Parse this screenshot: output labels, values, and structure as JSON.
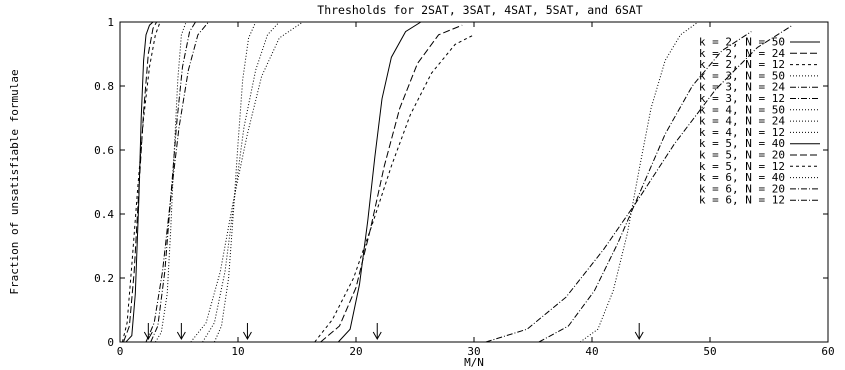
{
  "chart_data": {
    "type": "line",
    "title": "Thresholds for 2SAT, 3SAT, 4SAT, 5SAT, and 6SAT",
    "xlabel": "M/N",
    "ylabel": "Fraction of unsatisfiable formulae",
    "xlim": [
      0,
      60
    ],
    "ylim": [
      0,
      1
    ],
    "xticks": [
      0,
      10,
      20,
      30,
      40,
      50,
      60
    ],
    "yticks": [
      0,
      0.2,
      0.4,
      0.6,
      0.8,
      1
    ],
    "xtick_labels": [
      "0",
      "10",
      "20",
      "30",
      "40",
      "50",
      "60"
    ],
    "ytick_labels": [
      "0",
      "0.2",
      "0.4",
      "0.6",
      "0.8",
      "1"
    ],
    "grid": false,
    "legend_position": "top-right",
    "arrow_markers_x": [
      2.4,
      5.2,
      10.8,
      21.8,
      44.0
    ],
    "series": [
      {
        "name": "k = 2, N = 50",
        "dash": "solid",
        "x": [
          0.5,
          1.0,
          1.3,
          1.6,
          1.8,
          2.0,
          2.2,
          2.5,
          2.8
        ],
        "y": [
          0.0,
          0.02,
          0.15,
          0.45,
          0.7,
          0.88,
          0.96,
          0.99,
          1.0
        ]
      },
      {
        "name": "k = 2, N = 24",
        "dash": "longdash",
        "x": [
          0.3,
          0.8,
          1.2,
          1.6,
          2.0,
          2.4,
          2.8,
          3.1
        ],
        "y": [
          0.0,
          0.05,
          0.22,
          0.48,
          0.72,
          0.9,
          0.98,
          1.0
        ]
      },
      {
        "name": "k = 2, N = 12",
        "dash": "dash",
        "x": [
          0.2,
          0.6,
          1.0,
          1.5,
          2.0,
          2.5,
          3.0,
          3.4
        ],
        "y": [
          0.0,
          0.06,
          0.24,
          0.48,
          0.7,
          0.86,
          0.96,
          1.0
        ]
      },
      {
        "name": "k = 3, N = 50",
        "dash": "dot",
        "x": [
          3.0,
          3.5,
          4.0,
          4.3,
          4.6,
          4.9,
          5.2,
          5.6
        ],
        "y": [
          0.0,
          0.03,
          0.15,
          0.35,
          0.6,
          0.82,
          0.96,
          1.0
        ]
      },
      {
        "name": "k = 3, N = 24",
        "dash": "dashdot",
        "x": [
          2.6,
          3.2,
          3.8,
          4.3,
          4.8,
          5.3,
          5.9,
          6.4
        ],
        "y": [
          0.0,
          0.05,
          0.22,
          0.45,
          0.68,
          0.86,
          0.97,
          1.0
        ]
      },
      {
        "name": "k = 3, N = 12",
        "dash": "dashdot",
        "x": [
          2.2,
          2.9,
          3.6,
          4.3,
          5.0,
          5.8,
          6.6,
          7.5
        ],
        "y": [
          0.0,
          0.06,
          0.22,
          0.45,
          0.67,
          0.85,
          0.96,
          1.0
        ]
      },
      {
        "name": "k = 4, N = 50",
        "dash": "dot",
        "x": [
          8.0,
          8.6,
          9.2,
          9.6,
          10.0,
          10.4,
          10.9,
          11.5
        ],
        "y": [
          0.0,
          0.05,
          0.2,
          0.4,
          0.62,
          0.82,
          0.95,
          1.0
        ]
      },
      {
        "name": "k = 4, N = 24",
        "dash": "dot",
        "x": [
          7.0,
          8.0,
          8.9,
          9.7,
          10.5,
          11.5,
          12.5,
          13.5
        ],
        "y": [
          0.0,
          0.06,
          0.22,
          0.45,
          0.67,
          0.85,
          0.96,
          1.0
        ]
      },
      {
        "name": "k = 4, N = 12",
        "dash": "dot",
        "x": [
          6.0,
          7.3,
          8.5,
          9.6,
          10.8,
          12.0,
          13.5,
          15.5
        ],
        "y": [
          0.0,
          0.06,
          0.22,
          0.44,
          0.65,
          0.83,
          0.95,
          1.0
        ]
      },
      {
        "name": "k = 5, N = 40",
        "dash": "solid",
        "x": [
          18.5,
          19.5,
          20.3,
          21.0,
          21.6,
          22.2,
          23.0,
          24.2,
          25.5
        ],
        "y": [
          0.0,
          0.04,
          0.18,
          0.38,
          0.58,
          0.76,
          0.89,
          0.97,
          1.0
        ]
      },
      {
        "name": "k = 5, N = 20",
        "dash": "longdash",
        "x": [
          17.0,
          18.6,
          20.0,
          21.2,
          22.4,
          23.7,
          25.2,
          27.0,
          29.0
        ],
        "y": [
          0.0,
          0.05,
          0.17,
          0.35,
          0.55,
          0.73,
          0.87,
          0.96,
          0.99
        ]
      },
      {
        "name": "k = 5, N = 12",
        "dash": "dash",
        "x": [
          16.5,
          18.0,
          19.8,
          21.4,
          23.0,
          24.6,
          26.4,
          28.4,
          30.0
        ],
        "y": [
          0.0,
          0.07,
          0.2,
          0.37,
          0.55,
          0.71,
          0.84,
          0.93,
          0.96
        ]
      },
      {
        "name": "k = 6, N = 40",
        "dash": "dot",
        "x": [
          39.0,
          40.5,
          41.8,
          43.0,
          44.0,
          45.0,
          46.2,
          47.5,
          49.0
        ],
        "y": [
          0.0,
          0.04,
          0.16,
          0.34,
          0.54,
          0.73,
          0.88,
          0.96,
          1.0
        ]
      },
      {
        "name": "k = 6, N = 20",
        "dash": "dashdot",
        "x": [
          35.5,
          38.0,
          40.2,
          42.2,
          44.2,
          46.2,
          48.5,
          51.0,
          53.5
        ],
        "y": [
          0.0,
          0.05,
          0.16,
          0.31,
          0.48,
          0.65,
          0.8,
          0.91,
          0.97
        ]
      },
      {
        "name": "k = 6, N = 12",
        "dash": "dashdot",
        "x": [
          31.0,
          34.5,
          37.8,
          41.0,
          44.0,
          47.0,
          50.5,
          54.0,
          57.0
        ],
        "y": [
          0.0,
          0.04,
          0.14,
          0.29,
          0.45,
          0.62,
          0.79,
          0.92,
          0.99
        ]
      }
    ]
  }
}
